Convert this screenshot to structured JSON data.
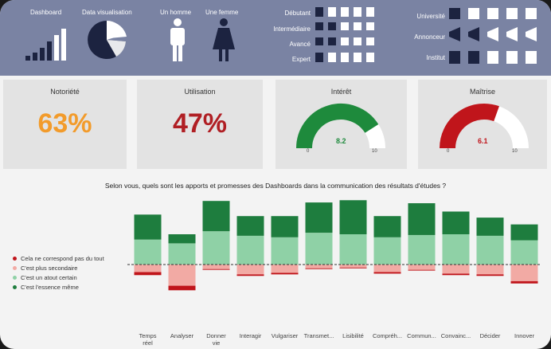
{
  "header": {
    "dashboard_label": "Dashboard",
    "dataviz_label": "Data visualisation",
    "man_label": "Un homme",
    "woman_label": "Une femme",
    "levels": [
      "Débutant",
      "Intermédiaire",
      "Avancé",
      "Expert"
    ],
    "org_types": [
      "Université",
      "Annonceur",
      "Institut"
    ]
  },
  "kpis": {
    "notoriete": {
      "title": "Notoriété",
      "value": "63%",
      "color": "#f29b2b"
    },
    "utilisation": {
      "title": "Utilisation",
      "value": "47%",
      "color": "#b01f24"
    },
    "interet": {
      "title": "Intérêt",
      "value": 8.2,
      "value_label": "8.2",
      "min_label": "0",
      "max_label": "10",
      "color": "#1e8a3c"
    },
    "maitrise": {
      "title": "Maîtrise",
      "value": 6.1,
      "value_label": "6.1",
      "min_label": "0",
      "max_label": "10",
      "color": "#c0151b"
    }
  },
  "chart_data": {
    "type": "bar",
    "title": "Selon vous, quels sont les apports et promesses des Dashboards dans la communication des résultats d'études ?",
    "categories": [
      "Temps réel",
      "Analyser",
      "Donner vie",
      "Interagir",
      "Vulgariser",
      "Transmet...",
      "Lisibilité",
      "Compréh...",
      "Commun...",
      "Convainc...",
      "Décider",
      "Innover"
    ],
    "category_lines": [
      [
        "Temps",
        "réel"
      ],
      [
        "Analyser"
      ],
      [
        "Donner",
        "vie"
      ],
      [
        "Interagir"
      ],
      [
        "Vulgariser"
      ],
      [
        "Transmet..."
      ],
      [
        "Lisibilité"
      ],
      [
        "Compréh..."
      ],
      [
        "Commun..."
      ],
      [
        "Convainc..."
      ],
      [
        "Décider"
      ],
      [
        "Innover"
      ]
    ],
    "stacked": "diverging",
    "series": [
      {
        "name": "Cela ne correspond pas du tout",
        "color": "#c0151b",
        "values": [
          -4,
          -6,
          -1,
          -2,
          -2,
          -1,
          -1,
          -2,
          -1,
          -2,
          -2,
          -3
        ]
      },
      {
        "name": "C'est plus secondaire",
        "color": "#f2aaa4",
        "values": [
          -10,
          -28,
          -6,
          -13,
          -11,
          -5,
          -4,
          -10,
          -7,
          -12,
          -13,
          -22
        ]
      },
      {
        "name": "C'est un atout certain",
        "color": "#8fd1a6",
        "values": [
          33,
          28,
          44,
          38,
          36,
          42,
          40,
          36,
          39,
          40,
          38,
          32
        ]
      },
      {
        "name": "C'est l'essence même",
        "color": "#1e7d3e",
        "values": [
          33,
          12,
          40,
          26,
          28,
          40,
          45,
          28,
          42,
          30,
          24,
          21
        ]
      }
    ],
    "ylim": [
      -40,
      80
    ],
    "legend_position": "left",
    "grid": false
  }
}
